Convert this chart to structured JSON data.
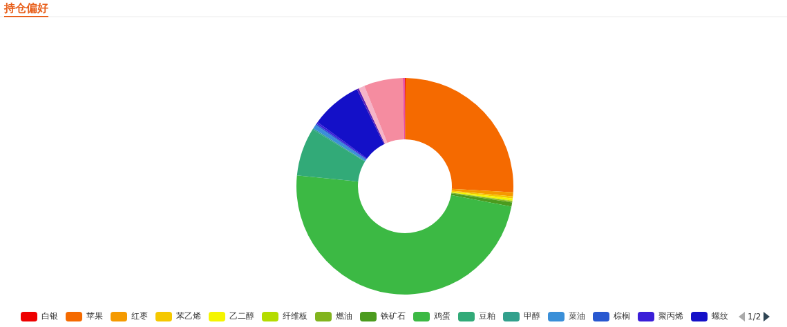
{
  "chart_data": {
    "type": "donut",
    "title": "持仓偏好",
    "categories": [
      "白银",
      "苹果",
      "红枣",
      "苯乙烯",
      "乙二醇",
      "纤维板",
      "燃油",
      "铁矿石",
      "鸡蛋",
      "豆粕",
      "甲醇",
      "菜油",
      "棕榈",
      "聚丙烯",
      "螺纹",
      null,
      null,
      null,
      null
    ],
    "values": [
      0.1,
      25.8,
      0.6,
      0.3,
      0.3,
      0.1,
      0.2,
      0.6,
      48.6,
      7.2,
      0.2,
      0.6,
      0.2,
      0.3,
      7.6,
      0.3,
      0.9,
      5.8,
      0.3
    ],
    "colors": [
      "#ee0000",
      "#f56a00",
      "#f59a00",
      "#f5c800",
      "#f5f500",
      "#b4dc00",
      "#82b41e",
      "#4b9b1e",
      "#3cb944",
      "#32aa78",
      "#32a08c",
      "#3a8fd8",
      "#2858d0",
      "#3a1ed8",
      "#1410c8",
      "#5a1eb4",
      "#f5b4c8",
      "#f58ca0",
      "#e650a0"
    ],
    "legend": "bottom",
    "annotations": [
      "1/2"
    ]
  }
}
